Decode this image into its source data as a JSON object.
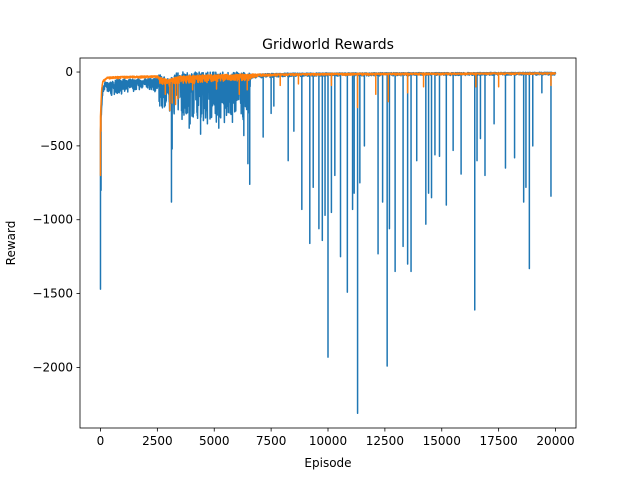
{
  "chart_data": {
    "type": "line",
    "title": "Gridworld Rewards",
    "xlabel": "Episode",
    "ylabel": "Reward",
    "xlim": [
      -900,
      20900
    ],
    "ylim": [
      -2410,
      95
    ],
    "x_ticks": [
      0,
      2500,
      5000,
      7500,
      10000,
      12500,
      15000,
      17500,
      20000
    ],
    "x_tick_labels": [
      "0",
      "2500",
      "5000",
      "7500",
      "10000",
      "12500",
      "15000",
      "17500",
      "20000"
    ],
    "y_ticks": [
      0,
      -500,
      -1000,
      -1500,
      -2000
    ],
    "y_tick_labels": [
      "0",
      "−500",
      "−1000",
      "−1500",
      "−2000"
    ],
    "grid": false,
    "legend": "none",
    "series": [
      {
        "color": "#1f77b4",
        "line_width": 1.5,
        "baseline": [
          [
            0,
            -400
          ],
          [
            50,
            -230
          ],
          [
            100,
            -110
          ],
          [
            200,
            -70
          ],
          [
            400,
            -75
          ],
          [
            700,
            -60
          ],
          [
            1000,
            -55
          ],
          [
            1500,
            -55
          ],
          [
            2000,
            -50
          ],
          [
            2500,
            -50
          ],
          [
            2600,
            -30
          ],
          [
            3000,
            -60
          ],
          [
            3500,
            -25
          ],
          [
            4000,
            -20
          ],
          [
            5000,
            -20
          ],
          [
            6000,
            -18
          ],
          [
            7000,
            -15
          ],
          [
            8000,
            -10
          ],
          [
            10000,
            -8
          ],
          [
            13000,
            -6
          ],
          [
            16000,
            -5
          ],
          [
            20000,
            -3
          ]
        ],
        "noise": [
          [
            0,
            5
          ],
          [
            100,
            30
          ],
          [
            600,
            60
          ],
          [
            1200,
            50
          ],
          [
            2000,
            35
          ],
          [
            2500,
            55
          ],
          [
            2600,
            120
          ],
          [
            3000,
            130
          ],
          [
            3500,
            180
          ],
          [
            4500,
            200
          ],
          [
            5500,
            200
          ],
          [
            6500,
            180
          ],
          [
            6600,
            20
          ],
          [
            7000,
            15
          ],
          [
            10000,
            12
          ],
          [
            20000,
            10
          ]
        ],
        "spikes": [
          [
            0,
            -1470
          ],
          [
            25,
            -800
          ],
          [
            3120,
            -880
          ],
          [
            3150,
            -520
          ],
          [
            3900,
            -380
          ],
          [
            4400,
            -420
          ],
          [
            4700,
            -350
          ],
          [
            5200,
            -380
          ],
          [
            5800,
            -340
          ],
          [
            6300,
            -430
          ],
          [
            6480,
            -620
          ],
          [
            6560,
            -760
          ],
          [
            7150,
            -440
          ],
          [
            7500,
            -280
          ],
          [
            7620,
            -230
          ],
          [
            8250,
            -600
          ],
          [
            8500,
            -400
          ],
          [
            8850,
            -930
          ],
          [
            9200,
            -1160
          ],
          [
            9350,
            -780
          ],
          [
            9600,
            -1060
          ],
          [
            9750,
            -1140
          ],
          [
            9870,
            -970
          ],
          [
            10000,
            -1930
          ],
          [
            10150,
            -950
          ],
          [
            10300,
            -700
          ],
          [
            10550,
            -1250
          ],
          [
            10850,
            -1490
          ],
          [
            11080,
            -930
          ],
          [
            11150,
            -820
          ],
          [
            11300,
            -2310
          ],
          [
            11400,
            -750
          ],
          [
            11600,
            -500
          ],
          [
            12200,
            -1230
          ],
          [
            12400,
            -880
          ],
          [
            12600,
            -1990
          ],
          [
            12700,
            -1060
          ],
          [
            12950,
            -1350
          ],
          [
            13300,
            -1180
          ],
          [
            13500,
            -1300
          ],
          [
            13650,
            -1350
          ],
          [
            13900,
            -600
          ],
          [
            14300,
            -1030
          ],
          [
            14420,
            -820
          ],
          [
            14550,
            -850
          ],
          [
            14700,
            -560
          ],
          [
            14900,
            -570
          ],
          [
            15200,
            -900
          ],
          [
            15500,
            -530
          ],
          [
            15850,
            -690
          ],
          [
            16450,
            -1610
          ],
          [
            16550,
            -600
          ],
          [
            16700,
            -450
          ],
          [
            16900,
            -700
          ],
          [
            17300,
            -350
          ],
          [
            17800,
            -650
          ],
          [
            18200,
            -580
          ],
          [
            18600,
            -880
          ],
          [
            18700,
            -780
          ],
          [
            18850,
            -1330
          ],
          [
            19000,
            -500
          ],
          [
            19400,
            -140
          ],
          [
            19800,
            -840
          ]
        ]
      },
      {
        "color": "#ff7f0e",
        "line_width": 1.5,
        "baseline": [
          [
            0,
            -300
          ],
          [
            50,
            -120
          ],
          [
            100,
            -60
          ],
          [
            300,
            -35
          ],
          [
            1000,
            -30
          ],
          [
            2000,
            -28
          ],
          [
            2500,
            -26
          ],
          [
            2600,
            -40
          ],
          [
            3000,
            -55
          ],
          [
            3500,
            -28
          ],
          [
            5000,
            -22
          ],
          [
            7000,
            -15
          ],
          [
            10000,
            -10
          ],
          [
            15000,
            -8
          ],
          [
            20000,
            -6
          ]
        ],
        "noise": [
          [
            0,
            5
          ],
          [
            300,
            8
          ],
          [
            2500,
            8
          ],
          [
            2600,
            25
          ],
          [
            4000,
            30
          ],
          [
            6500,
            25
          ],
          [
            7000,
            8
          ],
          [
            20000,
            6
          ]
        ],
        "spikes": [
          [
            0,
            -700
          ],
          [
            20,
            -400
          ],
          [
            2850,
            -150
          ],
          [
            3050,
            -260
          ],
          [
            3150,
            -210
          ],
          [
            3300,
            -220
          ],
          [
            3400,
            -180
          ],
          [
            4050,
            -120
          ],
          [
            5100,
            -115
          ],
          [
            6100,
            -150
          ],
          [
            6450,
            -120
          ],
          [
            7900,
            -90
          ],
          [
            8700,
            -80
          ],
          [
            10150,
            -90
          ],
          [
            11300,
            -240
          ],
          [
            12100,
            -150
          ],
          [
            12650,
            -200
          ],
          [
            13500,
            -140
          ],
          [
            14200,
            -100
          ],
          [
            16500,
            -100
          ],
          [
            17500,
            -100
          ],
          [
            19800,
            -90
          ]
        ]
      }
    ]
  }
}
